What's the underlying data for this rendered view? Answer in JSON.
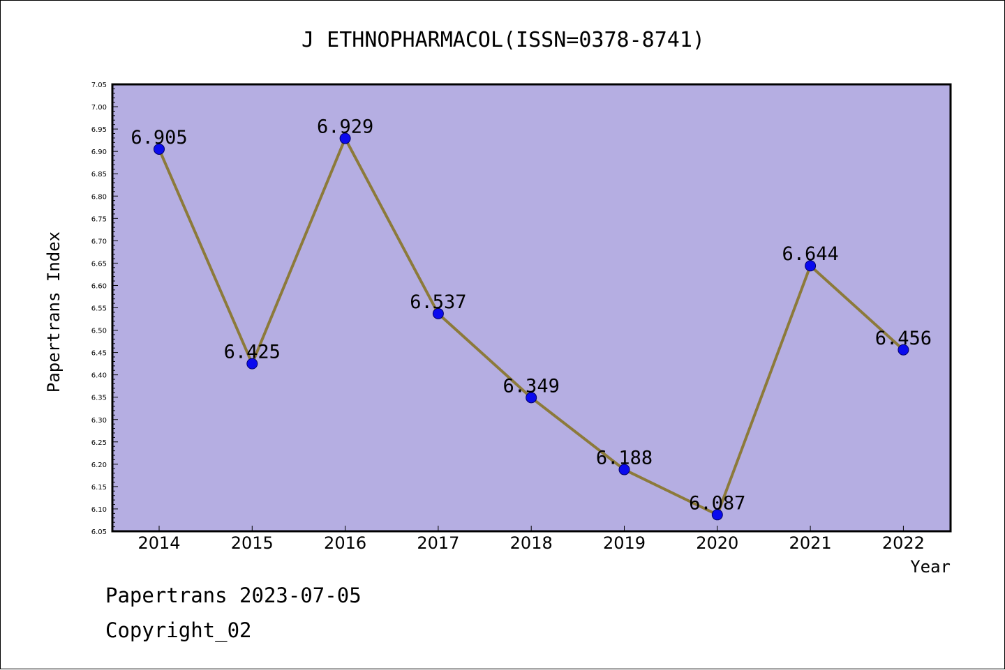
{
  "colors": {
    "plot_background": "#b5aee2",
    "line": "#8c7a3a",
    "marker": "#0a0aee",
    "marker_edge": "#000066"
  },
  "footer": {
    "line1": "Papertrans 2023-07-05",
    "line2": "Copyright_02"
  },
  "chart_data": {
    "type": "line",
    "title": "J ETHNOPHARMACOL(ISSN=0378-8741)",
    "xlabel": "Year",
    "ylabel": "Papertrans Index",
    "categories": [
      "2014",
      "2015",
      "2016",
      "2017",
      "2018",
      "2019",
      "2020",
      "2021",
      "2022"
    ],
    "values": [
      6.905,
      6.425,
      6.929,
      6.537,
      6.349,
      6.188,
      6.087,
      6.644,
      6.456
    ],
    "data_labels": [
      "6.905",
      "6.425",
      "6.929",
      "6.537",
      "6.349",
      "6.188",
      "6.087",
      "6.644",
      "6.456"
    ],
    "ylim": [
      6.05,
      7.05
    ],
    "yticks": [
      "6.05",
      "6.10",
      "6.15",
      "6.20",
      "6.25",
      "6.30",
      "6.35",
      "6.40",
      "6.45",
      "6.50",
      "6.55",
      "6.60",
      "6.65",
      "6.70",
      "6.75",
      "6.80",
      "6.85",
      "6.90",
      "6.95",
      "7.00",
      "7.05"
    ],
    "grid": false,
    "legend": "none"
  }
}
